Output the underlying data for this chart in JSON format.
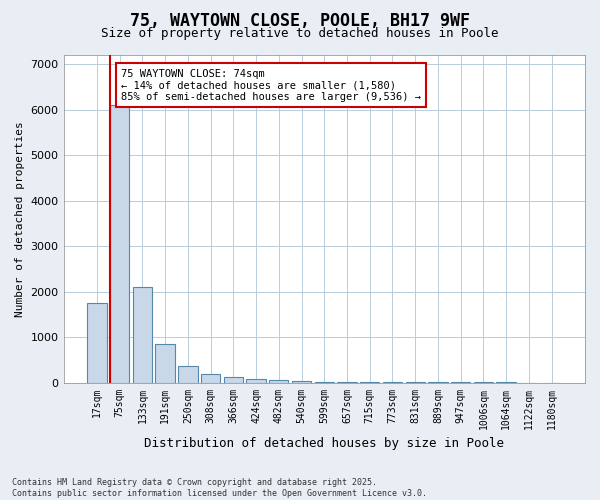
{
  "title": "75, WAYTOWN CLOSE, POOLE, BH17 9WF",
  "subtitle": "Size of property relative to detached houses in Poole",
  "xlabel": "Distribution of detached houses by size in Poole",
  "ylabel": "Number of detached properties",
  "annotation_title": "75 WAYTOWN CLOSE: 74sqm",
  "annotation_line1": "← 14% of detached houses are smaller (1,580)",
  "annotation_line2": "85% of semi-detached houses are larger (9,536) →",
  "footer_line1": "Contains HM Land Registry data © Crown copyright and database right 2025.",
  "footer_line2": "Contains public sector information licensed under the Open Government Licence v3.0.",
  "categories": [
    "17sqm",
    "75sqm",
    "133sqm",
    "191sqm",
    "250sqm",
    "308sqm",
    "366sqm",
    "424sqm",
    "482sqm",
    "540sqm",
    "599sqm",
    "657sqm",
    "715sqm",
    "773sqm",
    "831sqm",
    "889sqm",
    "947sqm",
    "1006sqm",
    "1064sqm",
    "1122sqm",
    "1180sqm"
  ],
  "values": [
    1750,
    6100,
    2100,
    850,
    370,
    200,
    120,
    70,
    50,
    35,
    25,
    20,
    15,
    12,
    10,
    8,
    6,
    5,
    4,
    3,
    2
  ],
  "bar_color": "#c8d8e8",
  "bar_edge_color": "#5588aa",
  "vline_x": 0.575,
  "vline_color": "#cc0000",
  "annotation_box_color": "#cc0000",
  "background_color": "#e8eef4",
  "plot_bg_color": "#ffffff",
  "ylim": [
    0,
    7200
  ],
  "yticks": [
    0,
    1000,
    2000,
    3000,
    4000,
    5000,
    6000,
    7000
  ]
}
